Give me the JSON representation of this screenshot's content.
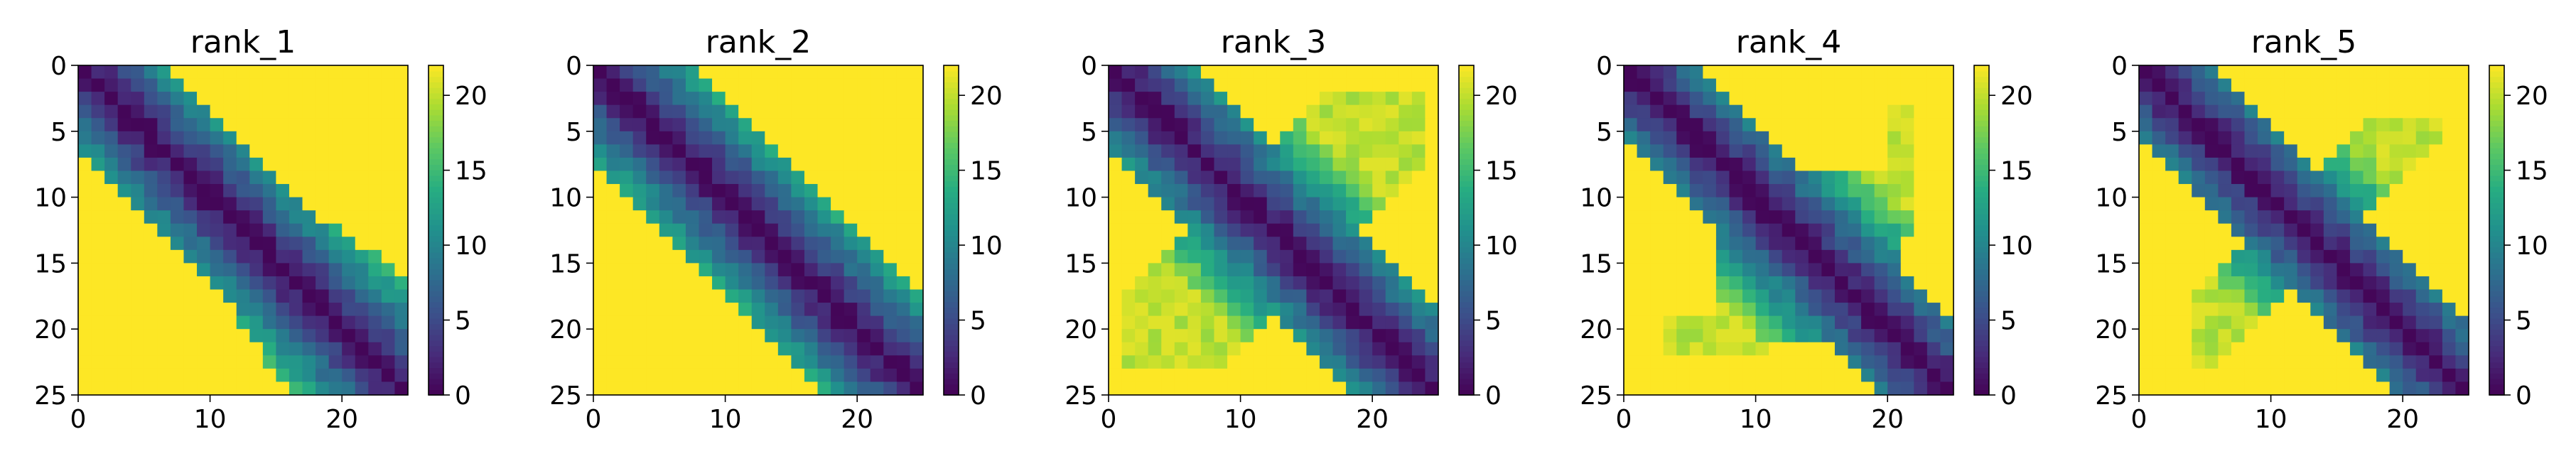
{
  "figure": {
    "panel_titles": [
      "rank_1",
      "rank_2",
      "rank_3",
      "rank_4",
      "rank_5"
    ]
  },
  "chart_data": [
    {
      "type": "heatmap",
      "title": "rank_1",
      "grid_size": 25,
      "x_ticks": [
        0,
        10,
        20
      ],
      "y_ticks": [
        0,
        5,
        10,
        15,
        20,
        25
      ],
      "colorbar_ticks": [
        0,
        5,
        10,
        15,
        20
      ],
      "colorbar_range": [
        0,
        22
      ],
      "colormap": "viridis",
      "background_value": 22,
      "description_values": "distance from diagonal |i-j| (0 on diagonal, rising to ~20 at band edge); outside band = 22 (yellow)"
    },
    {
      "type": "heatmap",
      "title": "rank_2",
      "grid_size": 25,
      "x_ticks": [
        0,
        10,
        20
      ],
      "y_ticks": [
        0,
        5,
        10,
        15,
        20,
        25
      ],
      "colorbar_ticks": [
        0,
        5,
        10,
        15,
        20
      ],
      "colorbar_range": [
        0,
        22
      ],
      "colormap": "viridis",
      "background_value": 22
    },
    {
      "type": "heatmap",
      "title": "rank_3",
      "grid_size": 25,
      "x_ticks": [
        0,
        10,
        20
      ],
      "y_ticks": [
        0,
        5,
        10,
        15,
        20,
        25
      ],
      "colorbar_ticks": [
        0,
        5,
        10,
        15,
        20
      ],
      "colorbar_range": [
        0,
        22
      ],
      "colormap": "viridis",
      "background_value": 22
    },
    {
      "type": "heatmap",
      "title": "rank_4",
      "grid_size": 25,
      "x_ticks": [
        0,
        10,
        20
      ],
      "y_ticks": [
        0,
        5,
        10,
        15,
        20,
        25
      ],
      "colorbar_ticks": [
        0,
        5,
        10,
        15,
        20
      ],
      "colorbar_range": [
        0,
        22
      ],
      "colormap": "viridis",
      "background_value": 22
    },
    {
      "type": "heatmap",
      "title": "rank_5",
      "grid_size": 25,
      "x_ticks": [
        0,
        10,
        20
      ],
      "y_ticks": [
        0,
        5,
        10,
        15,
        20,
        25
      ],
      "colorbar_ticks": [
        0,
        5,
        10,
        15,
        20
      ],
      "colorbar_range": [
        0,
        22
      ],
      "colormap": "viridis",
      "background_value": 22
    }
  ]
}
